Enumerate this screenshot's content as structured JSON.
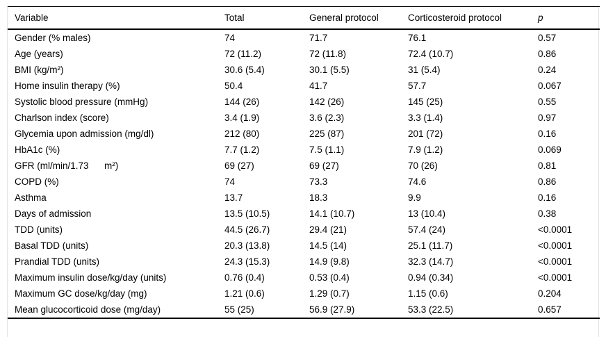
{
  "table": {
    "columns": [
      "Variable",
      "Total",
      "General protocol",
      "Corticosteroid protocol",
      "p"
    ],
    "rows": [
      [
        "Gender (% males)",
        "74",
        "71.7",
        "76.1",
        "0.57"
      ],
      [
        "Age (years)",
        "72 (11.2)",
        "72 (11.8)",
        "72.4 (10.7)",
        "0.86"
      ],
      [
        "BMI (kg/m²)",
        "30.6 (5.4)",
        "30.1 (5.5)",
        "31 (5.4)",
        "0.24"
      ],
      [
        "Home insulin therapy (%)",
        "50.4",
        "41.7",
        "57.7",
        "0.067"
      ],
      [
        "Systolic blood pressure (mmHg)",
        "144 (26)",
        "142 (26)",
        "145 (25)",
        "0.55"
      ],
      [
        "Charlson index (score)",
        "3.4 (1.9)",
        "3.6 (2.3)",
        "3.3 (1.4)",
        "0.97"
      ],
      [
        "Glycemia upon admission (mg/dl)",
        "212 (80)",
        "225 (87)",
        "201 (72)",
        "0.16"
      ],
      [
        "HbA1c (%)",
        "7.7 (1.2)",
        "7.5 (1.1)",
        "7.9 (1.2)",
        "0.069"
      ],
      [
        "GFR (ml/min/1.73      m²)",
        "69 (27)",
        "69 (27)",
        "70 (26)",
        "0.81"
      ],
      [
        "COPD (%)",
        "74",
        "73.3",
        "74.6",
        "0.86"
      ],
      [
        "Asthma",
        "13.7",
        "18.3",
        "9.9",
        "0.16"
      ],
      [
        "Days of admission",
        "13.5 (10.5)",
        "14.1 (10.7)",
        "13 (10.4)",
        "0.38"
      ],
      [
        "TDD (units)",
        "44.5 (26.7)",
        "29.4 (21)",
        "57.4 (24)",
        "<0.0001"
      ],
      [
        "Basal TDD (units)",
        "20.3 (13.8)",
        "14.5 (14)",
        "25.1 (11.7)",
        "<0.0001"
      ],
      [
        "Prandial TDD (units)",
        "24.3 (15.3)",
        "14.9 (9.8)",
        "32.3 (14.7)",
        "<0.0001"
      ],
      [
        "Maximum insulin dose/kg/day (units)",
        "0.76 (0.4)",
        "0.53 (0.4)",
        "0.94 (0.34)",
        "<0.0001"
      ],
      [
        "Maximum GC dose/kg/day (mg)",
        "1.21 (0.6)",
        "1.29 (0.7)",
        "1.15 (0.6)",
        "0.204"
      ],
      [
        "Mean glucocorticoid dose (mg/day)",
        "55 (25)",
        "56.9 (27.9)",
        "53.3 (22.5)",
        "0.657"
      ]
    ]
  }
}
